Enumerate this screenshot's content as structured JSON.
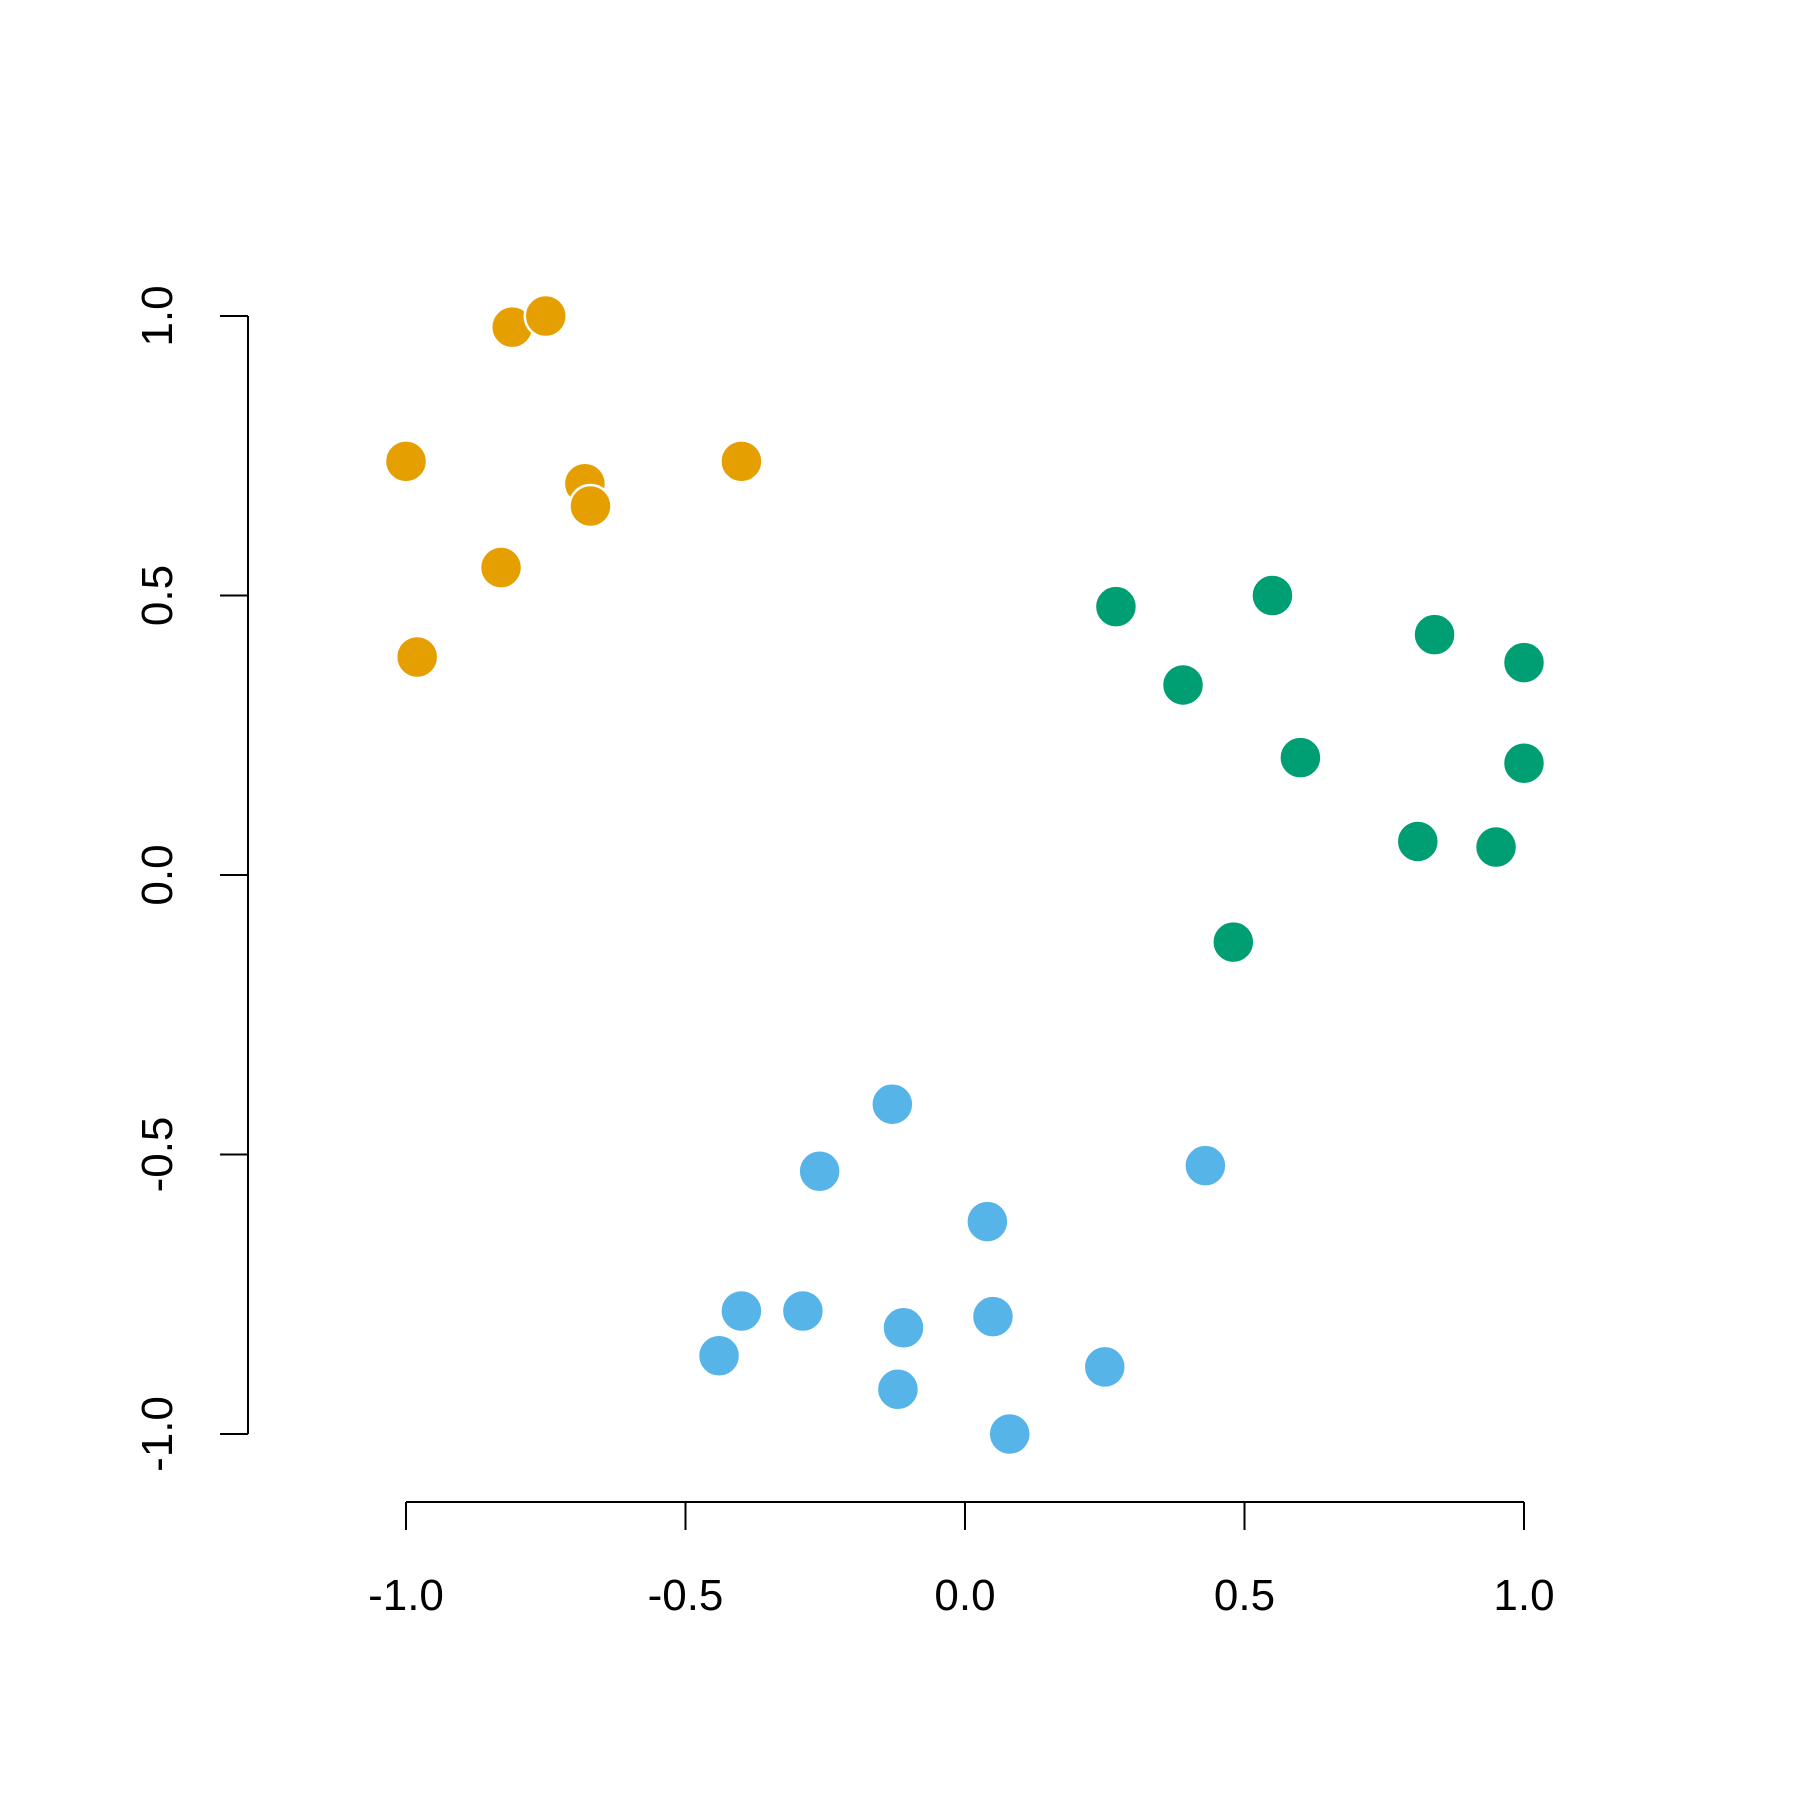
{
  "chart_data": {
    "type": "scatter",
    "title": "",
    "xlabel": "",
    "ylabel": "",
    "xlim": [
      -1.0,
      1.0
    ],
    "ylim": [
      -1.0,
      1.0
    ],
    "grid": false,
    "x_ticks": [
      -1.0,
      -0.5,
      0.0,
      0.5,
      1.0
    ],
    "y_ticks": [
      -1.0,
      -0.5,
      0.0,
      0.5,
      1.0
    ],
    "x_tick_labels": [
      "-1.0",
      "-0.5",
      "0.0",
      "0.5",
      "1.0"
    ],
    "y_tick_labels": [
      "-1.0",
      "-0.5",
      "0.0",
      "0.5",
      "1.0"
    ],
    "series": [
      {
        "color": "#E69F00",
        "points": [
          [
            -0.81,
            0.98
          ],
          [
            -0.75,
            1.0
          ],
          [
            -1.0,
            0.74
          ],
          [
            -0.68,
            0.7
          ],
          [
            -0.67,
            0.66
          ],
          [
            -0.4,
            0.74
          ],
          [
            -0.83,
            0.55
          ],
          [
            -0.98,
            0.39
          ]
        ]
      },
      {
        "color": "#009E73",
        "points": [
          [
            0.27,
            0.48
          ],
          [
            0.55,
            0.5
          ],
          [
            0.84,
            0.43
          ],
          [
            1.0,
            0.38
          ],
          [
            0.39,
            0.34
          ],
          [
            0.6,
            0.21
          ],
          [
            1.0,
            0.2
          ],
          [
            0.81,
            0.06
          ],
          [
            0.95,
            0.05
          ],
          [
            0.48,
            -0.12
          ]
        ]
      },
      {
        "color": "#56B4E9",
        "points": [
          [
            -0.13,
            -0.41
          ],
          [
            -0.26,
            -0.53
          ],
          [
            0.43,
            -0.52
          ],
          [
            0.04,
            -0.62
          ],
          [
            -0.4,
            -0.78
          ],
          [
            -0.29,
            -0.78
          ],
          [
            -0.11,
            -0.81
          ],
          [
            0.05,
            -0.79
          ],
          [
            -0.44,
            -0.86
          ],
          [
            -0.12,
            -0.92
          ],
          [
            0.25,
            -0.88
          ],
          [
            0.08,
            -1.0
          ]
        ]
      }
    ]
  }
}
